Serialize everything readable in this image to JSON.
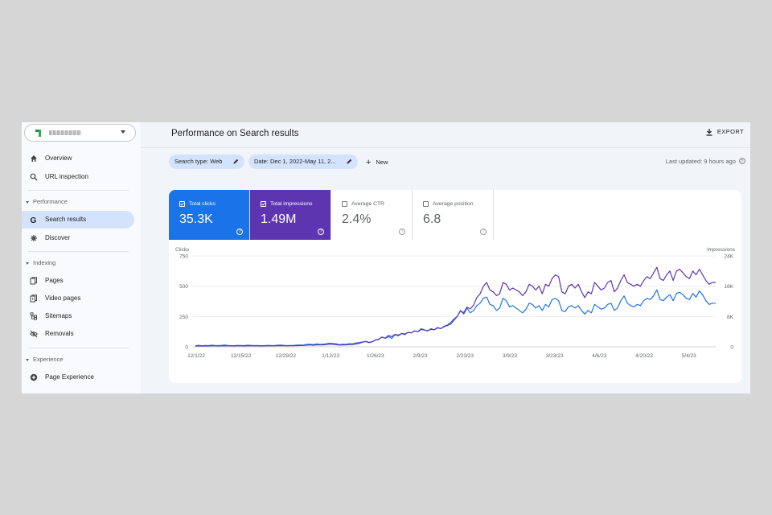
{
  "header": {
    "title": "Performance on Search results",
    "export_label": "EXPORT"
  },
  "sidebar": {
    "property_name": "",
    "items": [
      {
        "label": "Overview",
        "icon": "home-icon"
      },
      {
        "label": "URL inspection",
        "icon": "search-icon"
      },
      {
        "label": "Search results",
        "icon": "google-g-icon",
        "active": true
      },
      {
        "label": "Discover",
        "icon": "asterisk-icon"
      },
      {
        "label": "Pages",
        "icon": "pages-icon"
      },
      {
        "label": "Video pages",
        "icon": "video-pages-icon"
      },
      {
        "label": "Sitemaps",
        "icon": "sitemap-icon"
      },
      {
        "label": "Removals",
        "icon": "eye-off-icon"
      },
      {
        "label": "Page Experience",
        "icon": "plus-circle-icon"
      }
    ],
    "sections": [
      "Performance",
      "Indexing",
      "Experience"
    ]
  },
  "filters": {
    "search_type": "Search type: Web",
    "date": "Date: Dec 1, 2022-May 11, 2...",
    "new_label": "New",
    "last_updated": "Last updated: 9 hours ago"
  },
  "metrics": [
    {
      "label": "Total clicks",
      "value": "35.3K",
      "checked": true,
      "color": "#1a73e8"
    },
    {
      "label": "Total impressions",
      "value": "1.49M",
      "checked": true,
      "color": "#5e35b1"
    },
    {
      "label": "Average CTR",
      "value": "2.4%",
      "checked": false
    },
    {
      "label": "Average position",
      "value": "6.8",
      "checked": false
    }
  ],
  "chart_data": {
    "type": "line",
    "left_axis_label": "Clicks",
    "right_axis_label": "Impressions",
    "left_ticks": [
      "750",
      "500",
      "250",
      "0"
    ],
    "right_ticks": [
      "24K",
      "16K",
      "8K",
      "0"
    ],
    "ylim_left": [
      0,
      750
    ],
    "ylim_right": [
      0,
      24000
    ],
    "grid": true,
    "x_ticks": [
      "12/1/22",
      "12/15/22",
      "12/29/22",
      "1/12/23",
      "1/26/23",
      "2/9/23",
      "2/23/23",
      "3/9/23",
      "3/23/23",
      "4/6/23",
      "4/20/23",
      "5/4/23"
    ],
    "series": [
      {
        "name": "Total clicks",
        "axis": "left",
        "color": "#1a73e8",
        "values": [
          10,
          12,
          9,
          11,
          10,
          13,
          11,
          10,
          12,
          14,
          11,
          9,
          10,
          12,
          11,
          10,
          13,
          12,
          10,
          11,
          9,
          10,
          12,
          11,
          10,
          13,
          14,
          12,
          10,
          11,
          12,
          14,
          15,
          13,
          20,
          22,
          18,
          24,
          20,
          22,
          25,
          30,
          28,
          25,
          18,
          22,
          20,
          26,
          24,
          32,
          35,
          40,
          45,
          38,
          42,
          55,
          60,
          80,
          70,
          85,
          70,
          100,
          90,
          110,
          100,
          120,
          115,
          130,
          125,
          150,
          140,
          130,
          150,
          140,
          160,
          150,
          170,
          180,
          200,
          230,
          250,
          300,
          270,
          320,
          280,
          300,
          340,
          360,
          400,
          410,
          350,
          340,
          300,
          320,
          400,
          380,
          330,
          340,
          320,
          300,
          280,
          310,
          360,
          350,
          320,
          340,
          300,
          350,
          330,
          390,
          400,
          380,
          300,
          290,
          330,
          340,
          320,
          340,
          300,
          270,
          300,
          280,
          350,
          330,
          310,
          320,
          350,
          360,
          300,
          320,
          380,
          420,
          360,
          340,
          330,
          350,
          340,
          380,
          400,
          390,
          420,
          470,
          390,
          380,
          410,
          430,
          380,
          440,
          450,
          430,
          400,
          390,
          440,
          410,
          460,
          430,
          380,
          350,
          360,
          360
        ]
      },
      {
        "name": "Total impressions",
        "axis": "right",
        "color": "#5e35b1",
        "values": [
          200,
          250,
          220,
          240,
          230,
          260,
          250,
          240,
          260,
          280,
          250,
          230,
          240,
          270,
          250,
          240,
          280,
          260,
          250,
          260,
          230,
          240,
          280,
          260,
          250,
          300,
          320,
          300,
          260,
          270,
          300,
          320,
          350,
          340,
          450,
          500,
          400,
          550,
          480,
          520,
          600,
          700,
          650,
          580,
          450,
          520,
          480,
          620,
          600,
          750,
          900,
          1200,
          1400,
          1100,
          1300,
          1800,
          2000,
          2600,
          2300,
          3000,
          2700,
          3300,
          3100,
          3500,
          3400,
          3800,
          3700,
          4200,
          4000,
          4600,
          4400,
          4300,
          4600,
          4500,
          5000,
          4800,
          5300,
          5600,
          6000,
          7000,
          8000,
          9500,
          9000,
          10500,
          10000,
          11000,
          13000,
          14000,
          16000,
          17000,
          15000,
          14500,
          13500,
          14000,
          17000,
          16500,
          15000,
          15500,
          15000,
          14500,
          13500,
          14500,
          16500,
          16000,
          15000,
          16000,
          14000,
          16500,
          16000,
          18000,
          19000,
          18500,
          14500,
          14000,
          16000,
          16500,
          15500,
          16500,
          14500,
          13000,
          14500,
          14000,
          17000,
          16000,
          15000,
          15500,
          17000,
          17500,
          14500,
          15500,
          17500,
          19000,
          17000,
          16500,
          16000,
          16500,
          16000,
          17500,
          18500,
          18000,
          19500,
          21000,
          18000,
          17500,
          19000,
          20000,
          17500,
          20000,
          20500,
          19500,
          18500,
          18000,
          20000,
          19000,
          20500,
          19000,
          17500,
          16500,
          17000,
          17000
        ]
      }
    ]
  }
}
